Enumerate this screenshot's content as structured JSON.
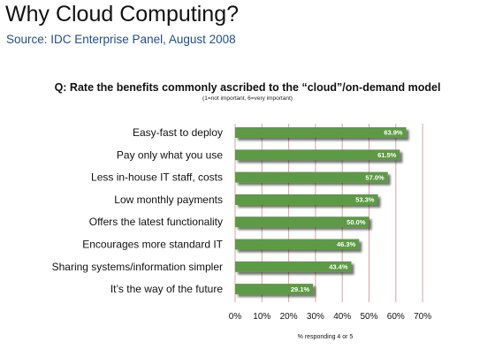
{
  "header": {
    "title": "Why Cloud Computing?",
    "source": "Source: IDC Enterprise Panel, August 2008"
  },
  "chart_data": {
    "type": "bar",
    "orientation": "horizontal",
    "title": "Q: Rate the benefits commonly ascribed to the “cloud”/on-demand model",
    "subtitle": "(1=not important, 6=very important)",
    "xlabel": "% responding 4 or 5",
    "ylabel": "",
    "categories": [
      "Easy-fast to deploy",
      "Pay only what you use",
      "Less in-house IT staff, costs",
      "Low monthly payments",
      "Offers the latest functionality",
      "Encourages more standard IT",
      "Sharing systems/information simpler",
      "It’s the way of the future"
    ],
    "values": [
      63.9,
      61.5,
      57.0,
      53.3,
      50.0,
      46.3,
      43.4,
      29.1
    ],
    "value_labels": [
      "63.9%",
      "61.5%",
      "57.0%",
      "53.3%",
      "50.0%",
      "46.3%",
      "43.4%",
      "29.1%"
    ],
    "xlim": [
      0,
      70
    ],
    "xticks": [
      0,
      10,
      20,
      30,
      40,
      50,
      60,
      70
    ],
    "xtick_labels": [
      "0%",
      "10%",
      "20%",
      "30%",
      "40%",
      "50%",
      "60%",
      "70%"
    ],
    "grid": "vertical",
    "bar_color": "#5d9a45",
    "grid_color": "#d9a3a3"
  }
}
